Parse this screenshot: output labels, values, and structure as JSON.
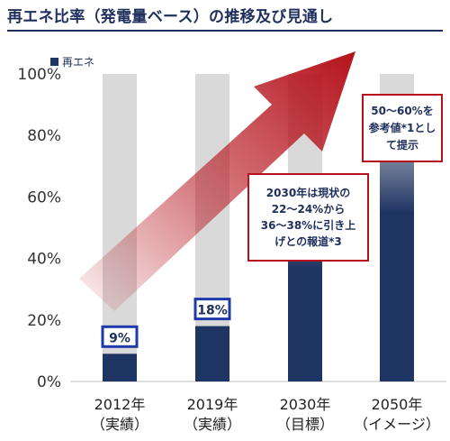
{
  "title": "再エネ比率（発電量ベース）の推移及び見通し",
  "colors": {
    "title": "#1f2f5c",
    "bar_fill": "#1e3463",
    "bar_background": "#d9d9d9",
    "value_box_border": "#1f3aa8",
    "callout_border": "#b5121b",
    "arrow": "#b5121b"
  },
  "chart_data": {
    "type": "bar",
    "categories": [
      "2012年\n（実績）",
      "2019年\n（実績）",
      "2030年\n（目標）",
      "2050年\n（イメージ）"
    ],
    "series": [
      {
        "name": "再エネ",
        "values": [
          9,
          18,
          37,
          55
        ]
      }
    ],
    "value_labels": [
      "9%",
      "18%",
      "",
      ""
    ],
    "yticks": [
      "0%",
      "20%",
      "40%",
      "60%",
      "80%",
      "100%"
    ],
    "ylim": [
      0,
      100
    ],
    "legend": "top-left",
    "grid": false
  },
  "callouts": {
    "target_2030": "2030年は現状の\n22～24%から\n36～38%に引き上\nげとの報道*3",
    "reference_2050": "50～60%を\n参考値*1とし\nて提示"
  }
}
